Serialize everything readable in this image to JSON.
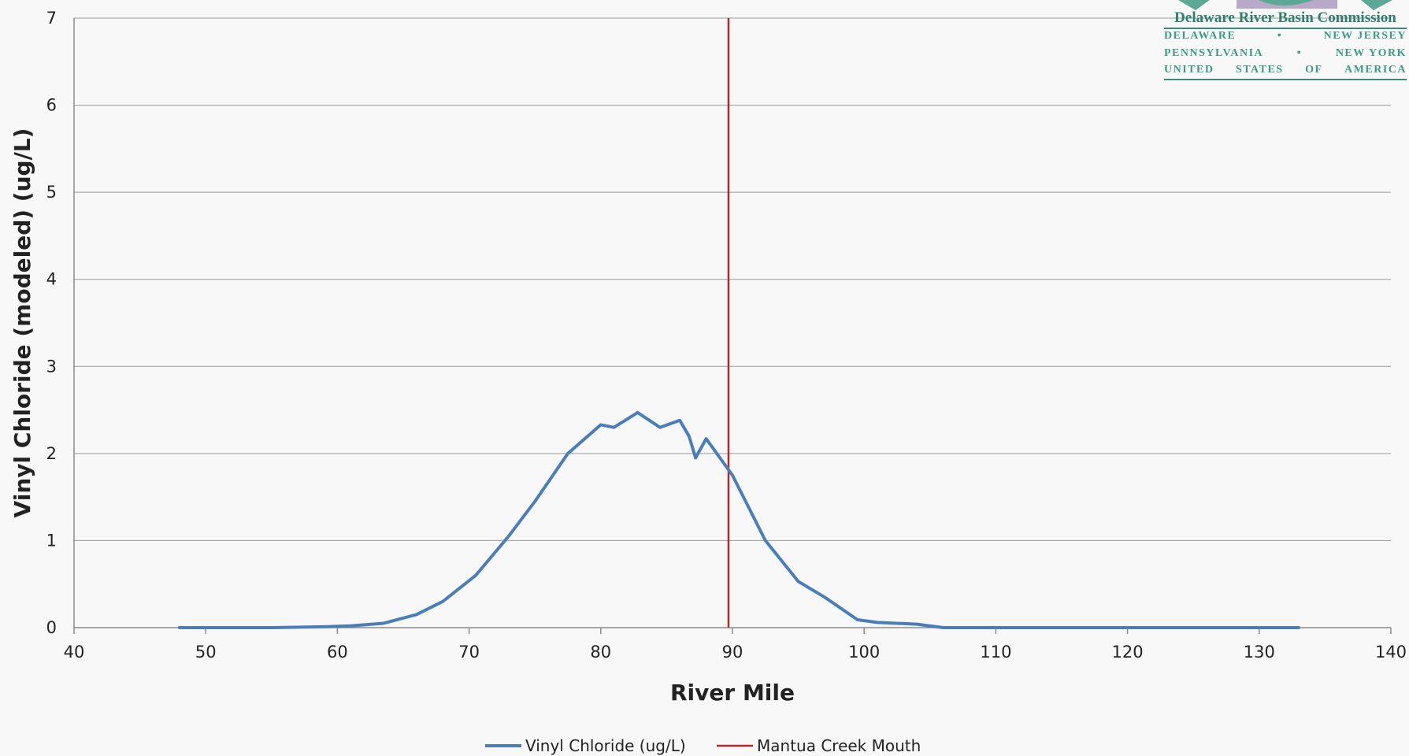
{
  "chart_data": {
    "type": "line",
    "title": "",
    "xlabel": "River Mile",
    "ylabel": "Vinyl Chloride  (modeled)  (ug/L)",
    "xlim": [
      40,
      140
    ],
    "ylim": [
      0,
      7
    ],
    "x_ticks": [
      40,
      50,
      60,
      70,
      80,
      90,
      100,
      110,
      120,
      130,
      140
    ],
    "y_ticks": [
      0,
      1,
      2,
      3,
      4,
      5,
      6,
      7
    ],
    "grid": "horizontal",
    "legend_position": "bottom",
    "series": [
      {
        "name": "Vinyl Chloride (ug/L)",
        "color": "#4a7ebb",
        "points": [
          [
            48,
            0
          ],
          [
            55,
            0
          ],
          [
            59,
            0.01
          ],
          [
            61,
            0.02
          ],
          [
            63.5,
            0.05
          ],
          [
            66,
            0.15
          ],
          [
            68,
            0.3
          ],
          [
            70.5,
            0.6
          ],
          [
            73,
            1.05
          ],
          [
            75,
            1.45
          ],
          [
            77.5,
            2.0
          ],
          [
            80,
            2.33
          ],
          [
            81,
            2.3
          ],
          [
            82.8,
            2.47
          ],
          [
            84.5,
            2.3
          ],
          [
            86,
            2.38
          ],
          [
            86.7,
            2.2
          ],
          [
            87.2,
            1.95
          ],
          [
            88,
            2.17
          ],
          [
            90,
            1.75
          ],
          [
            92.5,
            1.0
          ],
          [
            95,
            0.53
          ],
          [
            97,
            0.35
          ],
          [
            99.5,
            0.09
          ],
          [
            101,
            0.06
          ],
          [
            104,
            0.04
          ],
          [
            106,
            0.0
          ],
          [
            110,
            0
          ],
          [
            120,
            0
          ],
          [
            133,
            0
          ]
        ]
      }
    ],
    "vertical_marker": {
      "name": "Mantua Creek Mouth",
      "x": 89.7,
      "color": "#b02a2a"
    }
  },
  "logo": {
    "name": "Delaware River Basin Commission",
    "lines": [
      [
        "DELAWARE",
        "•",
        "NEW JERSEY"
      ],
      [
        "PENNSYLVANIA",
        "•",
        "NEW YORK"
      ],
      [
        "UNITED",
        "STATES",
        "OF",
        "AMERICA"
      ]
    ]
  }
}
